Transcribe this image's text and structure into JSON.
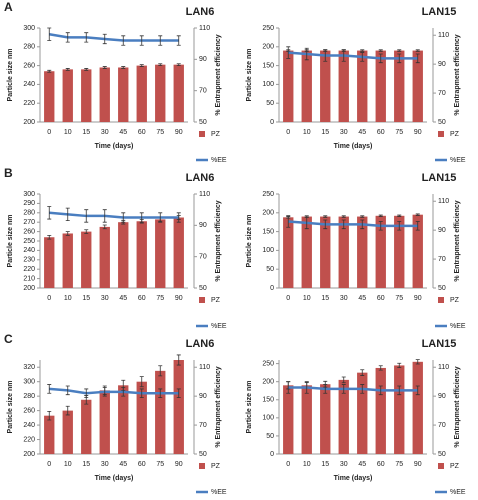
{
  "chart_data": [
    {
      "type": "bar",
      "panel": "A",
      "title": "LAN6",
      "xlabel": "Time (days)",
      "ylabel": "Particle size nm",
      "y2label": "% Entrapment efficiency",
      "categories": [
        "0",
        "10",
        "15",
        "30",
        "45",
        "60",
        "75",
        "90"
      ],
      "ylim": [
        200,
        300
      ],
      "yticks": [
        200,
        220,
        240,
        260,
        280,
        300
      ],
      "y2lim": [
        50,
        110
      ],
      "y2ticks": [
        50,
        70,
        90,
        110
      ],
      "series": [
        {
          "name": "PZ",
          "color": "#c0504d",
          "values": [
            254,
            256,
            256,
            258,
            258,
            260,
            261,
            261
          ],
          "errors": [
            1,
            1,
            1,
            1,
            1,
            1,
            1,
            1
          ]
        },
        {
          "name": "%EE",
          "color": "#4a7ec0",
          "axis": "y2",
          "values": [
            106,
            104,
            104,
            103,
            102,
            102,
            102,
            102
          ],
          "errors": [
            4,
            3,
            3,
            3,
            3,
            3,
            3,
            3
          ]
        }
      ]
    },
    {
      "type": "bar",
      "title": "LAN15",
      "xlabel": "Time (days)",
      "ylabel": "Particle size nm",
      "y2label": "% Entrapment efficiency",
      "categories": [
        "0",
        "10",
        "15",
        "30",
        "45",
        "60",
        "75",
        "90"
      ],
      "ylim": [
        0,
        250
      ],
      "yticks": [
        0,
        50,
        100,
        150,
        200,
        250
      ],
      "y2lim": [
        50,
        115
      ],
      "y2ticks": [
        50,
        70,
        90,
        110
      ],
      "series": [
        {
          "name": "PZ",
          "color": "#c0504d",
          "values": [
            190,
            190,
            190,
            190,
            190,
            190,
            190,
            190
          ],
          "errors": [
            2,
            2,
            2,
            2,
            2,
            2,
            2,
            2
          ]
        },
        {
          "name": "%EE",
          "color": "#4a7ec0",
          "axis": "y2",
          "values": [
            98,
            97,
            96,
            96,
            95,
            94,
            94,
            94
          ],
          "errors": [
            4,
            4,
            4,
            4,
            3,
            3,
            3,
            3
          ]
        }
      ]
    },
    {
      "type": "bar",
      "panel": "B",
      "title": "LAN6",
      "ylabel": "Particle size nm",
      "y2label": "% Entrapment efficiency",
      "categories": [
        "0",
        "10",
        "15",
        "30",
        "45",
        "60",
        "75",
        "90"
      ],
      "ylim": [
        200,
        300
      ],
      "yticks": [
        200,
        210,
        220,
        230,
        240,
        250,
        260,
        270,
        280,
        290,
        300
      ],
      "y2lim": [
        50,
        110
      ],
      "y2ticks": [
        50,
        70,
        90,
        110
      ],
      "series": [
        {
          "name": "PZ",
          "color": "#c0504d",
          "values": [
            254,
            258,
            260,
            265,
            270,
            271,
            273,
            275
          ],
          "errors": [
            2,
            2,
            2,
            2,
            2,
            2,
            2,
            2
          ]
        },
        {
          "name": "%EE",
          "color": "#4a7ec0",
          "axis": "y2",
          "values": [
            98,
            97,
            96,
            96,
            95,
            95,
            95,
            95
          ],
          "errors": [
            4,
            4,
            4,
            4,
            3,
            3,
            3,
            3
          ]
        }
      ]
    },
    {
      "type": "bar",
      "title": "LAN15",
      "ylabel": "Particle size nm",
      "y2label": "% Entrapment efficiency",
      "categories": [
        "0",
        "10",
        "15",
        "30",
        "45",
        "60",
        "75",
        "90"
      ],
      "ylim": [
        0,
        250
      ],
      "yticks": [
        0,
        50,
        100,
        150,
        200,
        250
      ],
      "y2lim": [
        50,
        115
      ],
      "y2ticks": [
        50,
        70,
        90,
        110
      ],
      "series": [
        {
          "name": "PZ",
          "color": "#c0504d",
          "values": [
            188,
            190,
            190,
            190,
            190,
            192,
            192,
            195
          ],
          "errors": [
            2,
            2,
            2,
            2,
            2,
            2,
            2,
            2
          ]
        },
        {
          "name": "%EE",
          "color": "#4a7ec0",
          "axis": "y2",
          "values": [
            96,
            95,
            94,
            94,
            94,
            93,
            93,
            93
          ],
          "errors": [
            4,
            4,
            3,
            3,
            3,
            3,
            3,
            3
          ]
        }
      ]
    },
    {
      "type": "bar",
      "panel": "C",
      "title": "LAN6",
      "xlabel": "Time (days)",
      "ylabel": "Particle size nm",
      "y2label": "% Entrapment efficiency",
      "categories": [
        "0",
        "10",
        "15",
        "30",
        "45",
        "60",
        "75",
        "90"
      ],
      "ylim": [
        200,
        330
      ],
      "yticks": [
        200,
        220,
        240,
        260,
        280,
        300,
        320
      ],
      "y2lim": [
        50,
        115
      ],
      "y2ticks": [
        50,
        70,
        90,
        110
      ],
      "series": [
        {
          "name": "PZ",
          "color": "#c0504d",
          "values": [
            253,
            260,
            275,
            288,
            295,
            300,
            315,
            330
          ],
          "errors": [
            6,
            6,
            6,
            6,
            7,
            7,
            7,
            7
          ]
        },
        {
          "name": "%EE",
          "color": "#4a7ec0",
          "axis": "y2",
          "values": [
            95,
            94,
            92,
            93,
            93,
            92,
            92,
            92
          ],
          "errors": [
            3,
            3,
            3,
            3,
            3,
            3,
            3,
            3
          ]
        }
      ]
    },
    {
      "type": "bar",
      "title": "LAN15",
      "xlabel": "Time (days)",
      "ylabel": "Particle size nm",
      "y2label": "% Entrapment efficiency",
      "categories": [
        "0",
        "10",
        "15",
        "30",
        "45",
        "60",
        "75",
        "90"
      ],
      "ylim": [
        0,
        260
      ],
      "yticks": [
        0,
        50,
        100,
        150,
        200,
        250
      ],
      "y2lim": [
        50,
        115
      ],
      "y2ticks": [
        50,
        70,
        90,
        110
      ],
      "series": [
        {
          "name": "PZ",
          "color": "#c0504d",
          "values": [
            190,
            190,
            193,
            205,
            225,
            238,
            245,
            255
          ],
          "errors": [
            10,
            8,
            8,
            8,
            8,
            6,
            6,
            6
          ]
        },
        {
          "name": "%EE",
          "color": "#4a7ec0",
          "axis": "y2",
          "values": [
            96,
            96,
            95,
            95,
            95,
            94,
            94,
            94
          ],
          "errors": [
            4,
            4,
            3,
            3,
            3,
            3,
            3,
            3
          ]
        }
      ]
    }
  ]
}
